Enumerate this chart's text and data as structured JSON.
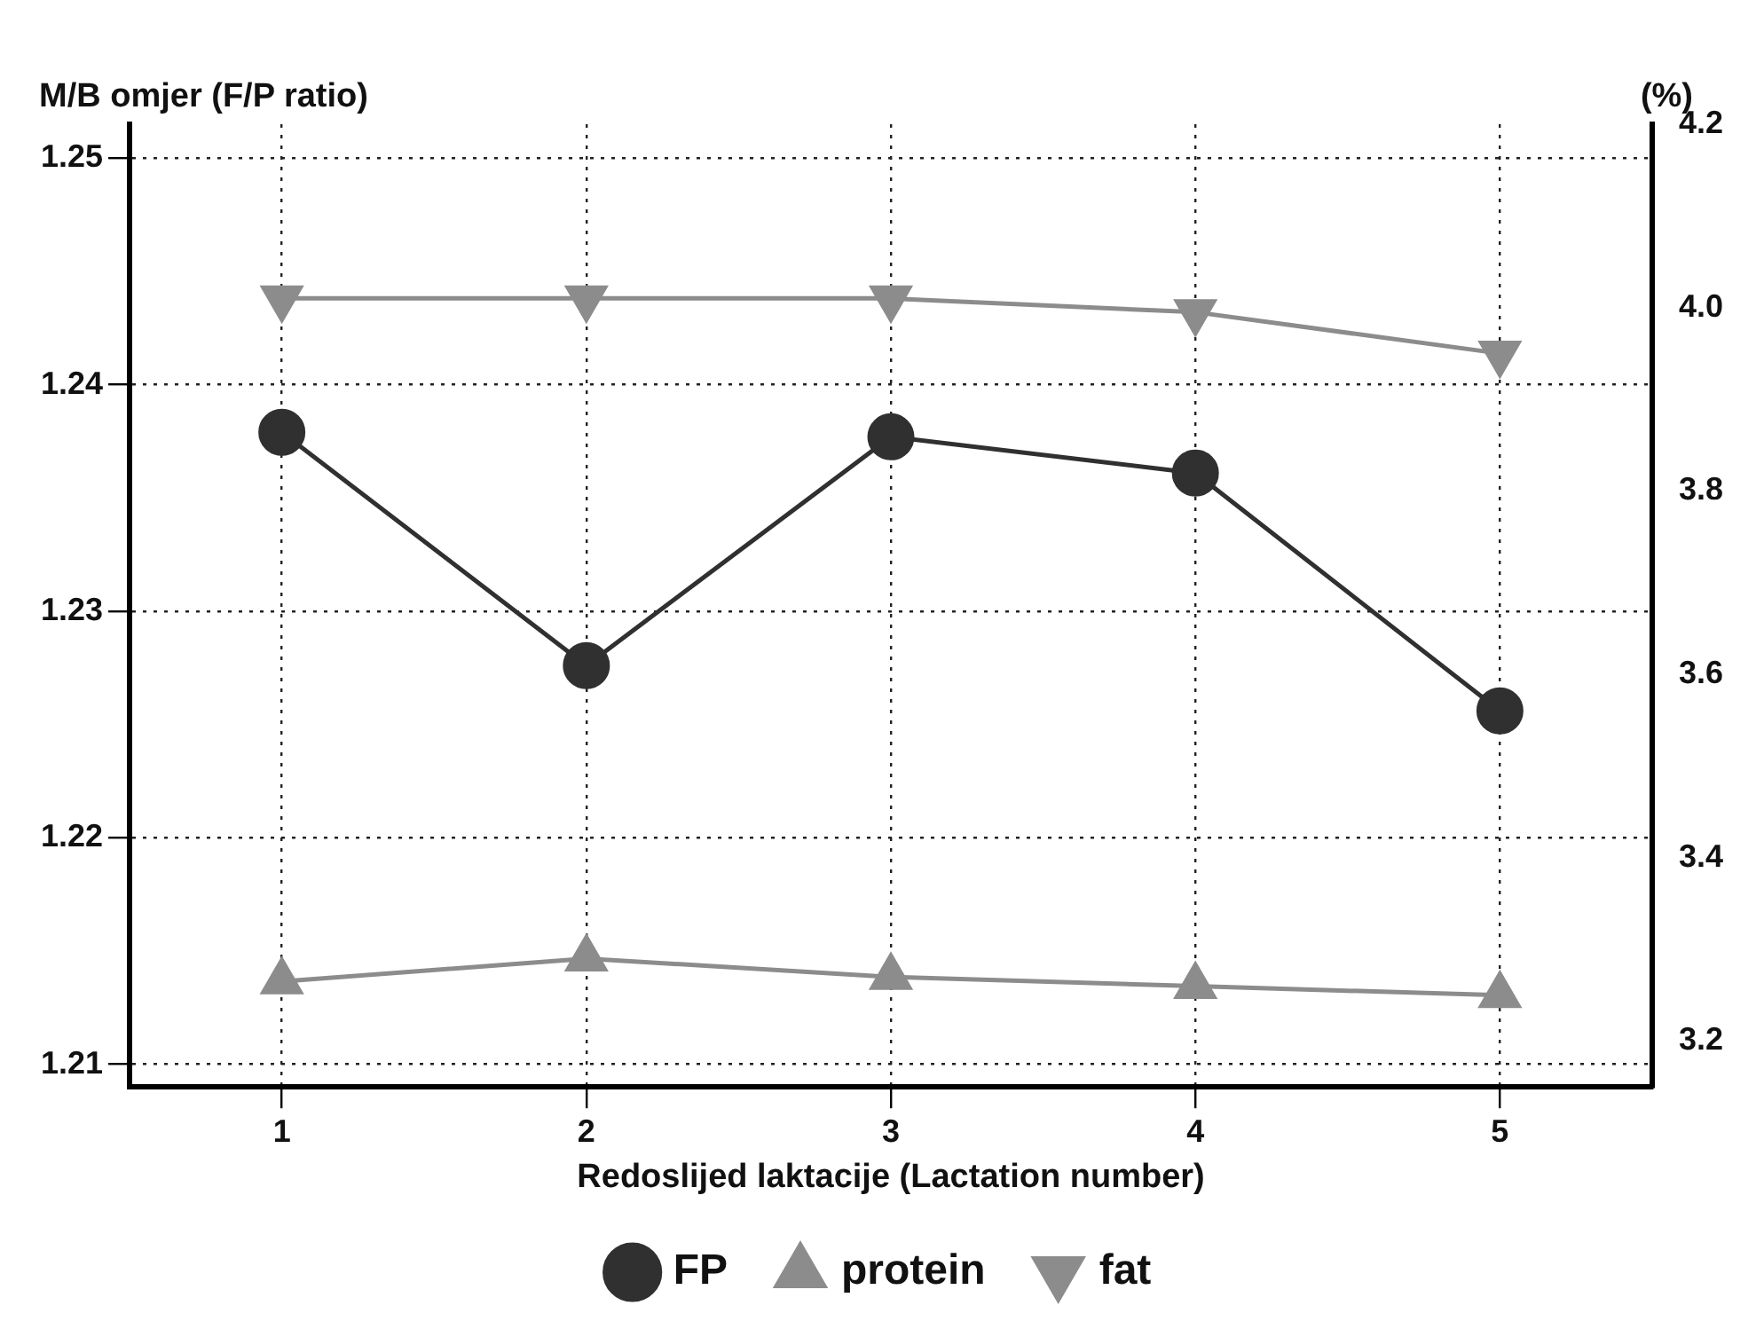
{
  "chart_data": {
    "type": "line",
    "xlabel": "Redoslijed laktacije (Lactation number)",
    "ylabel": "M/B omjer (F/P ratio)",
    "y2label": "(%)",
    "categories": [
      "1",
      "2",
      "3",
      "4",
      "5"
    ],
    "series": [
      {
        "name": "FP",
        "color": "#303030",
        "marker": "circle",
        "values": [
          1.2379,
          1.2276,
          1.2377,
          1.2361,
          1.2256
        ]
      },
      {
        "name": "protein",
        "color": "#8c8c8c",
        "marker": "triangle",
        "axis": "y2",
        "values": [
          3.265,
          3.29,
          3.27,
          3.26,
          3.25
        ]
      },
      {
        "name": "fat",
        "color": "#8c8c8c",
        "marker": "triangle-down",
        "axis": "y2",
        "values": [
          4.01,
          4.01,
          4.01,
          3.995,
          3.95
        ]
      }
    ],
    "ylim": [
      1.209,
      1.2515
    ],
    "yticks": [
      {
        "value": 1.21,
        "label": "1.21"
      },
      {
        "value": 1.22,
        "label": "1.22"
      },
      {
        "value": 1.23,
        "label": "1.23"
      },
      {
        "value": 1.24,
        "label": "1.24"
      },
      {
        "value": 1.25,
        "label": "1.25"
      }
    ],
    "y2lim": [
      3.15,
      4.2
    ],
    "y2ticks": [
      {
        "value": 3.2,
        "label": "3.2"
      },
      {
        "value": 3.4,
        "label": "3.4"
      },
      {
        "value": 3.6,
        "label": "3.6"
      },
      {
        "value": 3.8,
        "label": "3.8"
      },
      {
        "value": 4.0,
        "label": "4.0"
      },
      {
        "value": 4.2,
        "label": "4.2"
      }
    ],
    "grid": true,
    "legend": "bottom",
    "line_style": "solid"
  }
}
